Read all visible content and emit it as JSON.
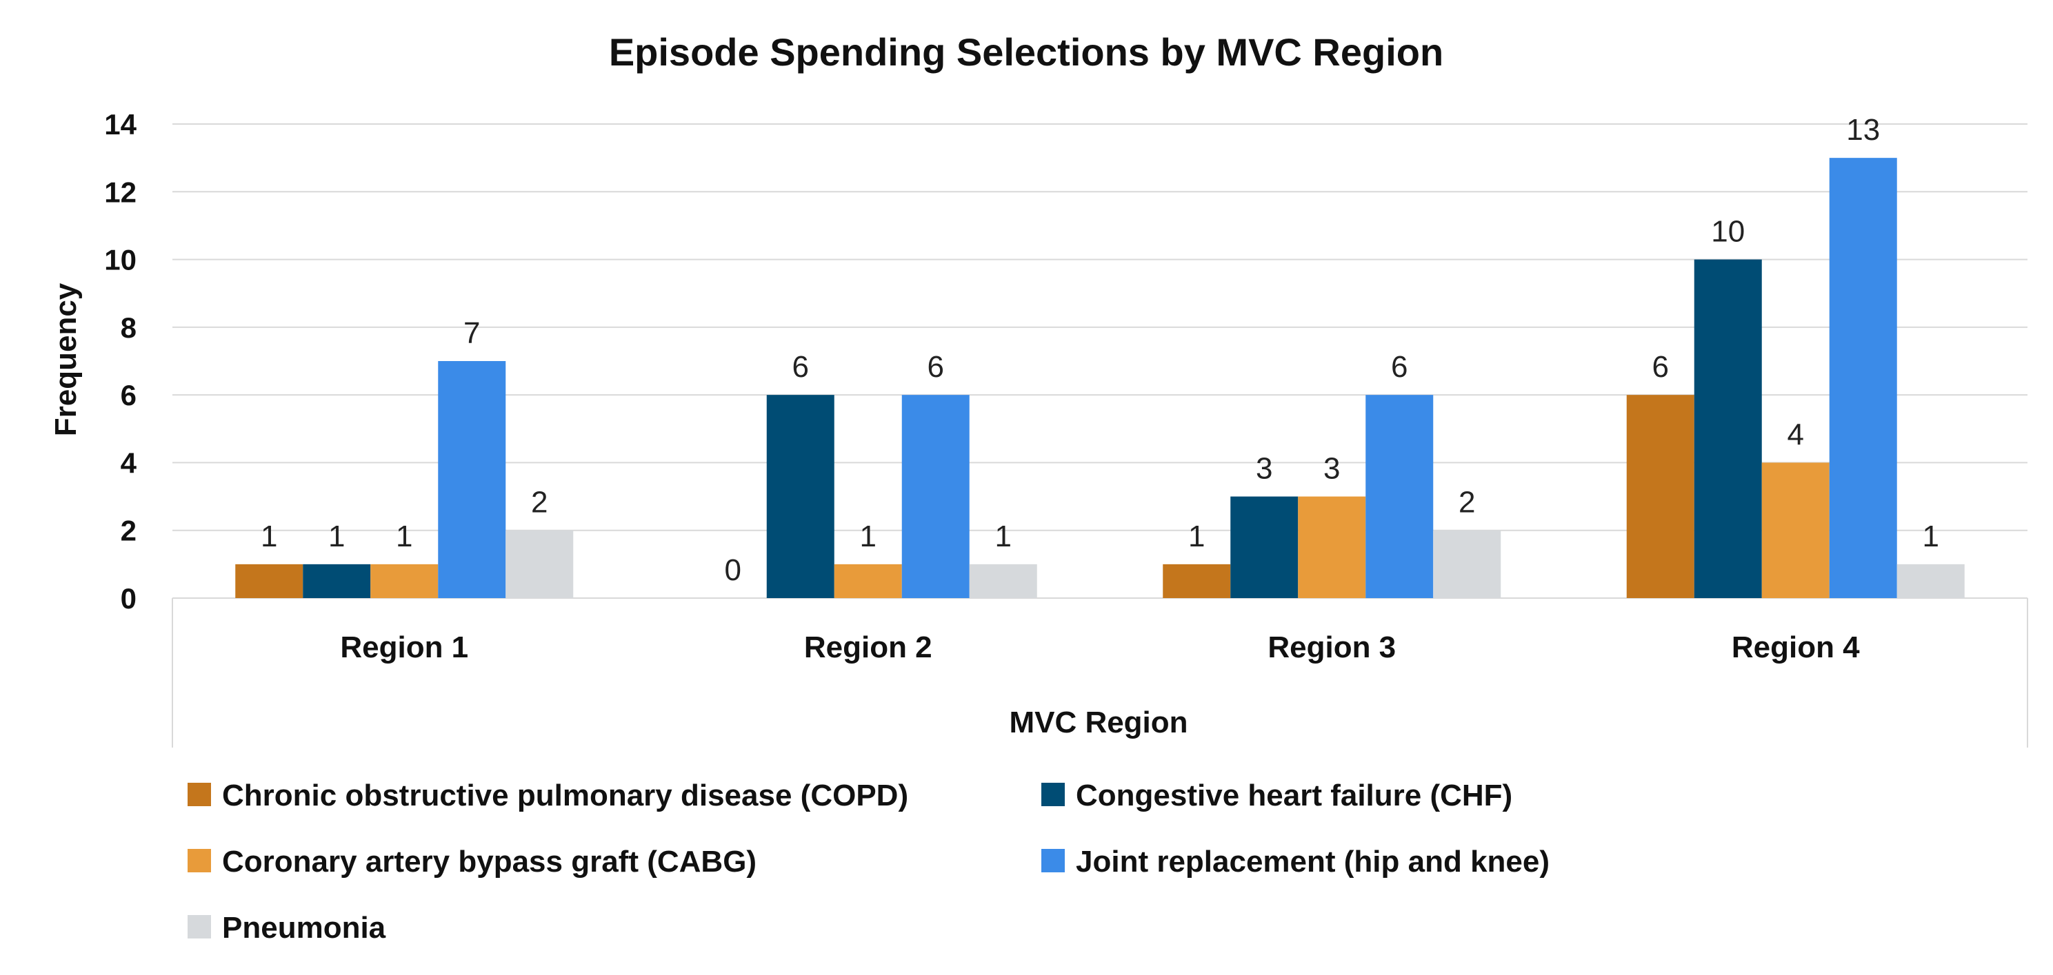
{
  "chart_data": {
    "type": "bar",
    "title": "Episode Spending Selections by MVC Region",
    "xlabel": "MVC Region",
    "ylabel": "Frequency",
    "categories": [
      "Region 1",
      "Region 2",
      "Region 3",
      "Region 4"
    ],
    "ylim": [
      0,
      14
    ],
    "yticks": [
      0,
      2,
      4,
      6,
      8,
      10,
      12,
      14
    ],
    "grid": true,
    "legend_position": "bottom",
    "series": [
      {
        "name": "Chronic obstructive pulmonary disease (COPD)",
        "color": "#C4761C",
        "values": [
          1,
          0,
          1,
          6
        ]
      },
      {
        "name": "Congestive heart failure (CHF)",
        "color": "#004C74",
        "values": [
          1,
          6,
          3,
          10
        ]
      },
      {
        "name": "Coronary artery bypass graft (CABG)",
        "color": "#E89B3A",
        "values": [
          1,
          1,
          3,
          4
        ]
      },
      {
        "name": "Joint replacement (hip and knee)",
        "color": "#3B8BE8",
        "values": [
          7,
          6,
          6,
          13
        ]
      },
      {
        "name": "Pneumonia",
        "color": "#D6D9DC",
        "values": [
          2,
          1,
          2,
          1
        ]
      }
    ]
  }
}
